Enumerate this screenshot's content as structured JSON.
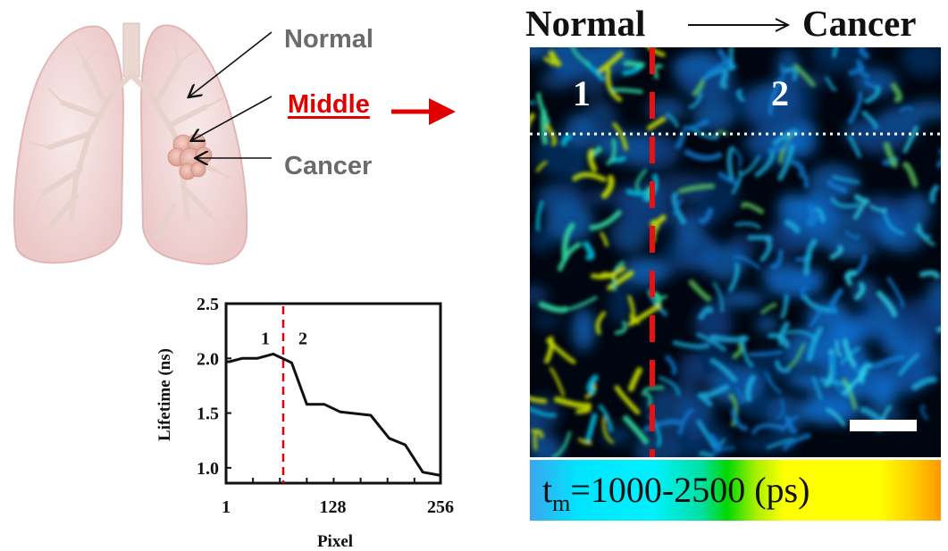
{
  "labels": {
    "normal": "Normal",
    "middle": "Middle",
    "cancer": "Cancer"
  },
  "image_title": {
    "left": "Normal",
    "arrow": "——→",
    "right": "Cancer"
  },
  "regions": [
    "1",
    "2"
  ],
  "colorbar": {
    "symbol": "t",
    "subscript": "m",
    "text": "=1000-2500 (ps)",
    "colors": [
      "#3aa6f0",
      "#00f0ff",
      "#00d800",
      "#ffff00",
      "#ff9800"
    ]
  },
  "accent_colors": {
    "middle_label": "#e00000",
    "divider": "#e00000"
  },
  "chart_data": {
    "type": "line",
    "title": "",
    "xlabel": "Pixel",
    "ylabel": "Lifetime (ns)",
    "xlim": [
      1,
      256
    ],
    "ylim": [
      0.86,
      2.5
    ],
    "xticks": [
      1,
      128,
      256
    ],
    "yticks": [
      1.0,
      1.5,
      2.0,
      2.5
    ],
    "ytick_labels": [
      "1.0",
      "1.5",
      "2.0",
      "2.5"
    ],
    "divider_x": 69,
    "divider_labels": [
      "1",
      "2"
    ],
    "series": [
      {
        "name": "lifetime",
        "x": [
          1,
          5,
          20,
          38,
          57,
          79,
          97,
          118,
          137,
          173,
          195,
          214,
          235,
          256
        ],
        "y": [
          1.97,
          1.97,
          2.0,
          2.0,
          2.04,
          1.96,
          1.58,
          1.58,
          1.51,
          1.48,
          1.27,
          1.21,
          0.96,
          0.93
        ]
      }
    ]
  }
}
